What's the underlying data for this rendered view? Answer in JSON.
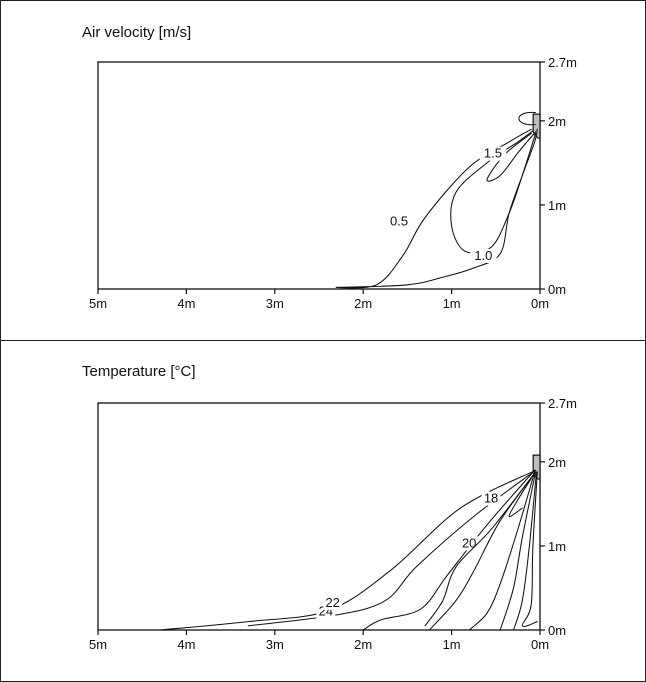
{
  "frame": {
    "border_color": "#222222"
  },
  "chart_data": [
    {
      "type": "contour",
      "title": "Air velocity [m/s]",
      "x_ticks": [
        "5m",
        "4m",
        "3m",
        "2m",
        "1m",
        "0m"
      ],
      "y_ticks": [
        "2.7m",
        "2m",
        "1m",
        "0m"
      ],
      "xlim": [
        5,
        0
      ],
      "ylim": [
        0,
        2.7
      ],
      "units": "m",
      "source": "indoor unit at x = 0 m, y ≈ 2 m (wall-mounted)",
      "contours": [
        {
          "level": 0.5,
          "label": "0.5",
          "points": [
            [
              0.03,
              1.9
            ],
            [
              0.06,
              1.75
            ],
            [
              0.2,
              1.35
            ],
            [
              0.35,
              0.9
            ],
            [
              0.45,
              0.42
            ],
            [
              0.75,
              0.25
            ],
            [
              1.1,
              0.14
            ],
            [
              1.5,
              0.05
            ],
            [
              2.3,
              0.02
            ],
            [
              1.85,
              0.05
            ],
            [
              1.55,
              0.4
            ],
            [
              1.3,
              0.85
            ],
            [
              0.8,
              1.45
            ],
            [
              0.35,
              1.75
            ],
            [
              0.1,
              1.9
            ]
          ]
        },
        {
          "level": 1.0,
          "label": "1.0",
          "points": [
            [
              0.05,
              1.85
            ],
            [
              0.2,
              1.35
            ],
            [
              0.35,
              0.9
            ],
            [
              0.55,
              0.5
            ],
            [
              0.85,
              0.45
            ],
            [
              1.0,
              0.75
            ],
            [
              0.95,
              1.15
            ],
            [
              0.6,
              1.5
            ],
            [
              0.25,
              1.75
            ],
            [
              0.08,
              1.88
            ]
          ]
        },
        {
          "level": 1.5,
          "label": "1.5",
          "points": [
            [
              0.05,
              1.87
            ],
            [
              0.25,
              1.62
            ],
            [
              0.45,
              1.35
            ],
            [
              0.6,
              1.3
            ],
            [
              0.4,
              1.6
            ],
            [
              0.1,
              1.85
            ]
          ]
        }
      ]
    },
    {
      "type": "contour",
      "title": "Temperature [°C]",
      "x_ticks": [
        "5m",
        "4m",
        "3m",
        "2m",
        "1m",
        "0m"
      ],
      "y_ticks": [
        "2.7m",
        "2m",
        "1m",
        "0m"
      ],
      "xlim": [
        5,
        0
      ],
      "ylim": [
        0,
        2.7
      ],
      "units": "°C",
      "source": "indoor unit at x = 0 m, y ≈ 2 m (wall-mounted)",
      "contour_labels": [
        "24",
        "22",
        "20",
        "18"
      ],
      "contours": [
        {
          "level": 24,
          "label": "24",
          "points": [
            [
              0.05,
              1.9
            ],
            [
              0.9,
              1.45
            ],
            [
              1.7,
              0.7
            ],
            [
              2.4,
              0.23
            ],
            [
              3.3,
              0.1
            ],
            [
              4.3,
              0.0
            ]
          ]
        },
        {
          "level": 22,
          "label": "22",
          "points": [
            [
              0.05,
              1.9
            ],
            [
              0.75,
              1.35
            ],
            [
              1.4,
              0.75
            ],
            [
              1.75,
              0.35
            ],
            [
              2.3,
              0.18
            ],
            [
              3.3,
              0.05
            ]
          ]
        },
        {
          "level": 20,
          "label": "20",
          "points": [
            [
              0.06,
              1.9
            ],
            [
              0.6,
              1.25
            ],
            [
              1.05,
              0.65
            ],
            [
              1.35,
              0.25
            ],
            [
              1.8,
              0.12
            ],
            [
              2.0,
              0.0
            ]
          ]
        },
        {
          "level": 18,
          "label": "18",
          "points": [
            [
              0.1,
              1.8
            ],
            [
              0.25,
              1.55
            ],
            [
              0.35,
              1.35
            ],
            [
              0.2,
              1.45
            ]
          ]
        }
      ]
    }
  ]
}
